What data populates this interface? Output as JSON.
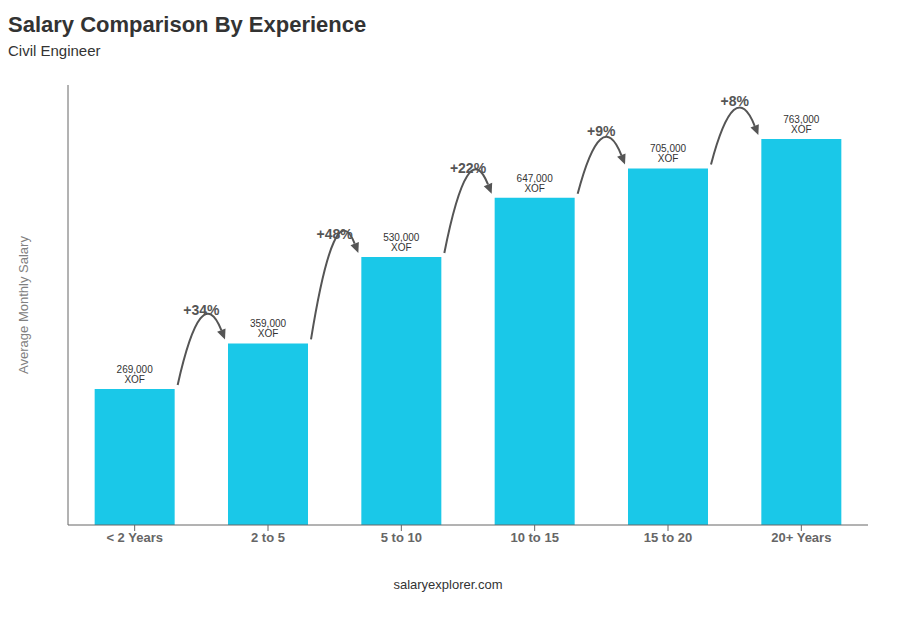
{
  "chart_data": {
    "type": "bar",
    "title": "Salary Comparison By Experience",
    "subtitle": "Civil Engineer",
    "ylabel": "Average Monthly Salary",
    "categories": [
      "< 2 Years",
      "2 to 5",
      "5 to 10",
      "10 to 15",
      "15 to 20",
      "20+ Years"
    ],
    "values": [
      269000,
      359000,
      530000,
      647000,
      705000,
      763000
    ],
    "value_labels": [
      "269,000 XOF",
      "359,000 XOF",
      "530,000 XOF",
      "647,000 XOF",
      "705,000 XOF",
      "763,000 XOF"
    ],
    "data_labels": true,
    "color": "#1ac8e8",
    "ylim": [
      0,
      870000
    ],
    "tick_labels": "x",
    "grid": false,
    "annotations": [
      {
        "text": "+34%",
        "from": "< 2 Years",
        "to": "2 to 5"
      },
      {
        "text": "+48%",
        "from": "2 to 5",
        "to": "5 to 10"
      },
      {
        "text": "+22%",
        "from": "5 to 10",
        "to": "10 to 15"
      },
      {
        "text": "+9%",
        "from": "10 to 15",
        "to": "15 to 20"
      },
      {
        "text": "+8%",
        "from": "15 to 20",
        "to": "20+ Years"
      },
      {
        "text": "salaryexplorer.com"
      }
    ]
  }
}
